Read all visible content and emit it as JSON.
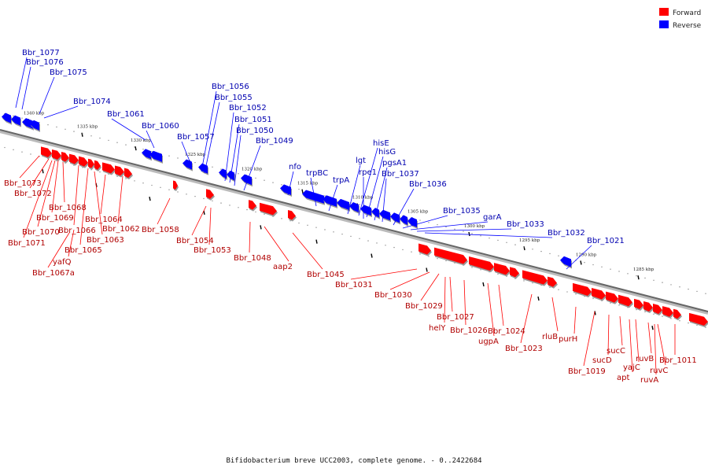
{
  "caption": "Bifidobacterium breve UCC2003, complete genome. - 0..2422684",
  "legend": [
    {
      "label": "Forward",
      "color": "#ff0000"
    },
    {
      "label": "Reverse",
      "color": "#0000ff"
    }
  ],
  "colors": {
    "forward": "#ff0000",
    "reverse": "#0000ff",
    "forward_label": "#b00000",
    "reverse_label": "#0000b0"
  },
  "ticks": [
    "1340 kbp",
    "1335 kbp",
    "1330 kbp",
    "1325 kbp",
    "1320 kbp",
    "1315 kbp",
    "1310 kbp",
    "1305 kbp",
    "1300 kbp",
    "1295 kbp",
    "1290 kbp",
    "1285 kbp"
  ],
  "reverse_genes": [
    "Bbr_1077",
    "Bbr_1076",
    "Bbr_1075",
    "Bbr_1074",
    "Bbr_1061",
    "Bbr_1060",
    "Bbr_1057",
    "Bbr_1056",
    "Bbr_1055",
    "Bbr_1052",
    "Bbr_1051",
    "Bbr_1050",
    "Bbr_1049",
    "nfo",
    "trpBC",
    "trpA",
    "lgt",
    "hisE",
    "hisG",
    "rpe1",
    "pgsA1",
    "Bbr_1037",
    "Bbr_1036",
    "Bbr_1035",
    "garA",
    "Bbr_1033",
    "Bbr_1032",
    "Bbr_1021"
  ],
  "forward_genes": [
    "Bbr_1073",
    "Bbr_1072",
    "Bbr_1068",
    "Bbr_1069",
    "Bbr_1070",
    "Bbr_1071",
    "Bbr_1066",
    "Bbr_1065",
    "Bbr_1064",
    "Bbr_1063",
    "Bbr_1062",
    "yafQ",
    "Bbr_1067a",
    "Bbr_1058",
    "Bbr_1054",
    "Bbr_1053",
    "Bbr_1048",
    "aap2",
    "Bbr_1045",
    "Bbr_1031",
    "Bbr_1030",
    "Bbr_1029",
    "Bbr_1027",
    "helY",
    "Bbr_1026",
    "Bbr_1024",
    "ugpA",
    "Bbr_1023",
    "rluB",
    "purH",
    "Bbr_1019",
    "sucD",
    "sucC",
    "yajC",
    "apt",
    "ruvB",
    "ruvC",
    "ruvA",
    "Bbr_1011"
  ]
}
